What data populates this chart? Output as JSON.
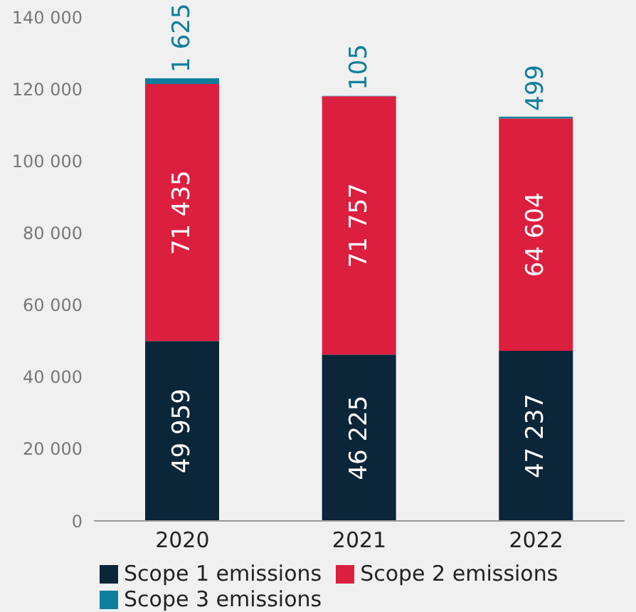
{
  "chart_data": {
    "type": "bar",
    "stacked": true,
    "categories": [
      "2020",
      "2021",
      "2022"
    ],
    "series": [
      {
        "name": "Scope 1 emissions",
        "color": "#0b2539",
        "values": [
          49959,
          46225,
          47237
        ],
        "value_labels": [
          "49 959",
          "46 225",
          "47 237"
        ]
      },
      {
        "name": "Scope 2 emissions",
        "color": "#dc1f3f",
        "values": [
          71435,
          71757,
          64604
        ],
        "value_labels": [
          "71 435",
          "71 757",
          "64 604"
        ]
      },
      {
        "name": "Scope 3 emissions",
        "color": "#0f7e9c",
        "values": [
          1625,
          105,
          499
        ],
        "value_labels": [
          "1 625",
          "105",
          "499"
        ]
      }
    ],
    "ylim": [
      0,
      140000
    ],
    "yticks": [
      {
        "value": 0,
        "label": "0"
      },
      {
        "value": 20000,
        "label": "20 000"
      },
      {
        "value": 40000,
        "label": "40 000"
      },
      {
        "value": 60000,
        "label": "60 000"
      },
      {
        "value": 80000,
        "label": "80 000"
      },
      {
        "value": 100000,
        "label": "100 000"
      },
      {
        "value": 120000,
        "label": "120 000"
      },
      {
        "value": 140000,
        "label": "140 000"
      }
    ],
    "legend": "bottom"
  }
}
